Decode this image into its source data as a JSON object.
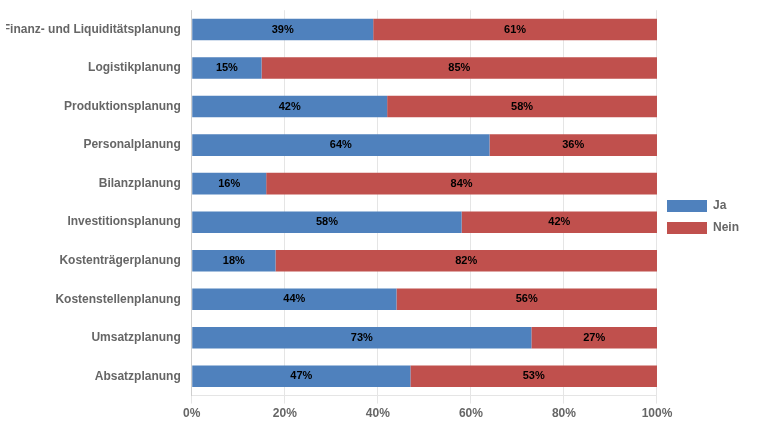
{
  "chart_data": {
    "type": "bar",
    "orientation": "horizontal",
    "stacked": true,
    "categories": [
      "Absatzplanung",
      "Umsatzplanung",
      "Kostenstellenplanung",
      "Kostenträgerplanung",
      "Investitionsplanung",
      "Bilanzplanung",
      "Personalplanung",
      "Produktionsplanung",
      "Logistikplanung",
      "Finanz- und Liquiditätsplanung"
    ],
    "series": [
      {
        "name": "Ja",
        "color": "#4F81BD",
        "values": [
          47,
          73,
          44,
          18,
          58,
          16,
          64,
          42,
          15,
          39
        ],
        "value_labels": [
          "47%",
          "73%",
          "44%",
          "18%",
          "58%",
          "16%",
          "64%",
          "42%",
          "15%",
          "39%"
        ]
      },
      {
        "name": "Nein",
        "color": "#C0504D",
        "values": [
          53,
          27,
          56,
          82,
          42,
          84,
          36,
          58,
          85,
          61
        ],
        "value_labels": [
          "53%",
          "27%",
          "56%",
          "82%",
          "42%",
          "84%",
          "36%",
          "58%",
          "85%",
          "61%"
        ]
      }
    ],
    "xlim": [
      0,
      100
    ],
    "xticks": [
      {
        "value": 0,
        "label": "0%"
      },
      {
        "value": 20,
        "label": "20%"
      },
      {
        "value": 40,
        "label": "40%"
      },
      {
        "value": 60,
        "label": "60%"
      },
      {
        "value": 80,
        "label": "80%"
      },
      {
        "value": 100,
        "label": "100%"
      }
    ],
    "grid": true,
    "legend": "right",
    "data_labels": true
  }
}
